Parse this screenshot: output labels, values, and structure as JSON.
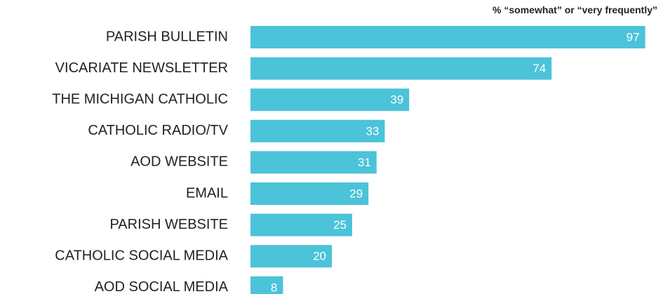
{
  "chart_data": {
    "type": "bar",
    "orientation": "horizontal",
    "subtitle": "% “somewhat” or “very frequently”",
    "categories": [
      "PARISH BULLETIN",
      "VICARIATE NEWSLETTER",
      "THE MICHIGAN CATHOLIC",
      "CATHOLIC RADIO/TV",
      "AOD WEBSITE",
      "EMAIL",
      "PARISH WEBSITE",
      "CATHOLIC SOCIAL MEDIA",
      "AOD SOCIAL MEDIA"
    ],
    "values": [
      97,
      74,
      39,
      33,
      31,
      29,
      25,
      20,
      8
    ],
    "data_labels": [
      "97",
      "74",
      "39",
      "33",
      "31",
      "29",
      "25",
      "20",
      "8"
    ],
    "xlim": [
      0,
      100
    ],
    "grid": false,
    "bar_color": "#4bc3d9"
  }
}
